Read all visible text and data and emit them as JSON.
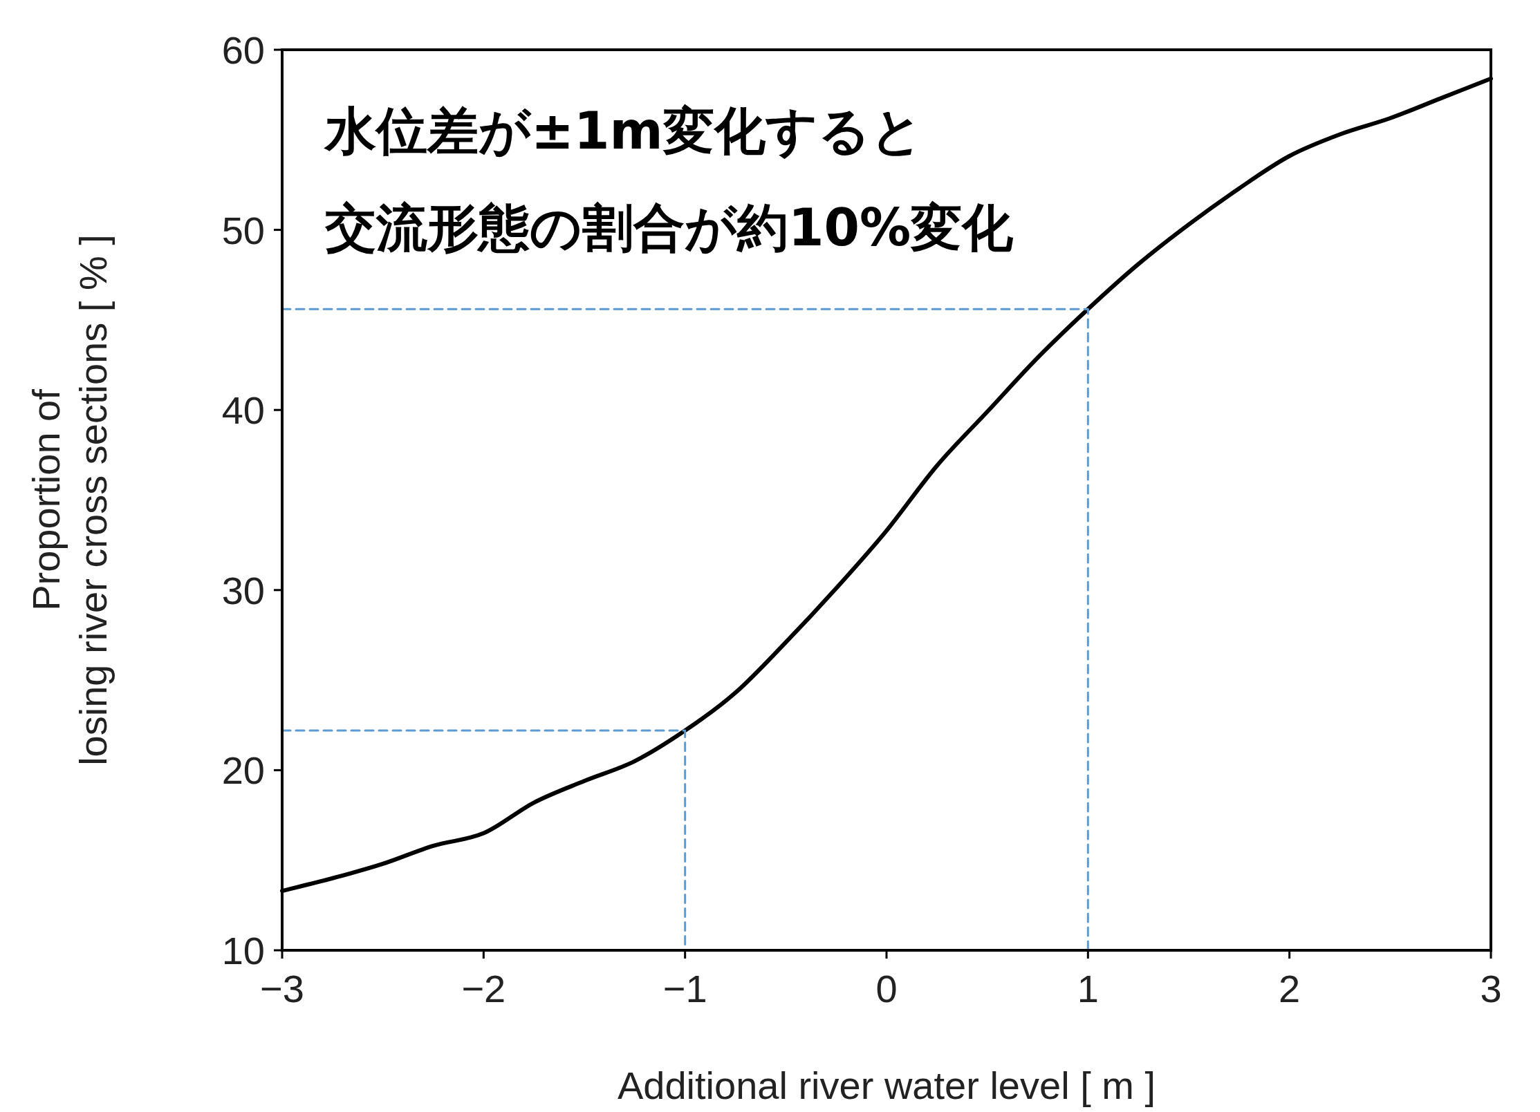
{
  "chart_data": {
    "type": "line",
    "xlabel": "Additional river water level [ m ]",
    "ylabel": "Proportion of\nlosing river cross sections [ % ]",
    "annotations": [
      "水位差が±1m変化すると",
      "交流形態の割合が約10%変化"
    ],
    "xlim": [
      -3,
      3
    ],
    "ylim": [
      10,
      60
    ],
    "xticks": [
      {
        "value": -3,
        "label": "−3"
      },
      {
        "value": -2,
        "label": "−2"
      },
      {
        "value": -1,
        "label": "−1"
      },
      0,
      1,
      2,
      3
    ],
    "yticks": [
      10,
      20,
      30,
      40,
      50,
      60
    ],
    "grid": false,
    "series": [
      {
        "color": "#000000",
        "line_style": "solid",
        "x": [
          -3,
          -2.75,
          -2.5,
          -2.25,
          -2,
          -1.75,
          -1.5,
          -1.25,
          -1,
          -0.75,
          -0.5,
          -0.25,
          0,
          0.25,
          0.5,
          0.75,
          1,
          1.25,
          1.5,
          1.75,
          2,
          2.25,
          2.5,
          2.75,
          3
        ],
        "values": [
          13.3,
          14.0,
          14.8,
          15.8,
          16.5,
          18.2,
          19.4,
          20.5,
          22.2,
          24.3,
          27.1,
          30.1,
          33.3,
          36.9,
          39.9,
          42.9,
          45.6,
          48.1,
          50.3,
          52.3,
          54.1,
          55.3,
          56.2,
          57.3,
          58.4
        ]
      },
      {
        "color": "#5b9bd5",
        "line_style": "dashed",
        "x": [
          -3,
          -1,
          -1
        ],
        "values": [
          22.2,
          22.2,
          10
        ]
      },
      {
        "color": "#5b9bd5",
        "line_style": "dashed",
        "x": [
          -3,
          1,
          1
        ],
        "values": [
          45.6,
          45.6,
          10
        ]
      }
    ]
  }
}
